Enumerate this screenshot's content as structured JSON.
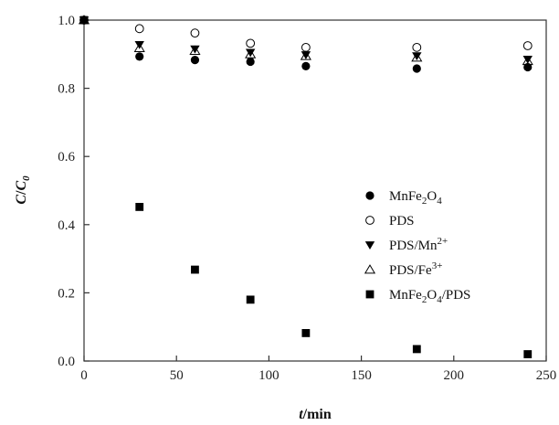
{
  "chart_data": {
    "type": "scatter",
    "xlabel": {
      "italic": "t",
      "rest": "/min"
    },
    "ylabel": {
      "italic_main": "C",
      "slash": "/",
      "italic_sub_main": "C",
      "sub": "0"
    },
    "xlim": [
      0,
      250
    ],
    "ylim": [
      0,
      1.0
    ],
    "xticks": [
      0,
      50,
      100,
      150,
      200,
      250
    ],
    "yticks": [
      0.0,
      0.2,
      0.4,
      0.6,
      0.8,
      1.0
    ],
    "xtick_labels": [
      "0",
      "50",
      "100",
      "150",
      "200",
      "250"
    ],
    "ytick_labels": [
      "0.0",
      "0.2",
      "0.4",
      "0.6",
      "0.8",
      "1.0"
    ],
    "grid": false,
    "legend_position": "center-right",
    "x": [
      0,
      30,
      60,
      90,
      120,
      180,
      240
    ],
    "series": [
      {
        "name": {
          "parts": [
            "MnFe",
            "2",
            "O",
            "4"
          ],
          "script": [
            "n",
            "sub",
            "n",
            "sub"
          ]
        },
        "marker": "filled-circle",
        "values": [
          1.0,
          0.893,
          0.883,
          0.878,
          0.865,
          0.858,
          0.862
        ]
      },
      {
        "name": {
          "parts": [
            "PDS"
          ],
          "script": [
            "n"
          ]
        },
        "marker": "open-circle",
        "values": [
          1.0,
          0.975,
          0.962,
          0.932,
          0.92,
          0.92,
          0.925
        ]
      },
      {
        "name": {
          "parts": [
            "PDS/Mn",
            "2+"
          ],
          "script": [
            "n",
            "sup"
          ]
        },
        "marker": "filled-triangle-down",
        "values": [
          1.0,
          0.928,
          0.915,
          0.905,
          0.898,
          0.895,
          0.885
        ]
      },
      {
        "name": {
          "parts": [
            "PDS/Fe",
            "3+"
          ],
          "script": [
            "n",
            "sup"
          ]
        },
        "marker": "open-triangle-up",
        "values": [
          1.0,
          0.918,
          0.91,
          0.9,
          0.895,
          0.89,
          0.88
        ]
      },
      {
        "name": {
          "parts": [
            "MnFe",
            "2",
            "O",
            "4",
            "/PDS"
          ],
          "script": [
            "n",
            "sub",
            "n",
            "sub",
            "n"
          ]
        },
        "marker": "filled-square",
        "values": [
          1.0,
          0.452,
          0.268,
          0.18,
          0.082,
          0.035,
          0.02
        ]
      }
    ]
  }
}
